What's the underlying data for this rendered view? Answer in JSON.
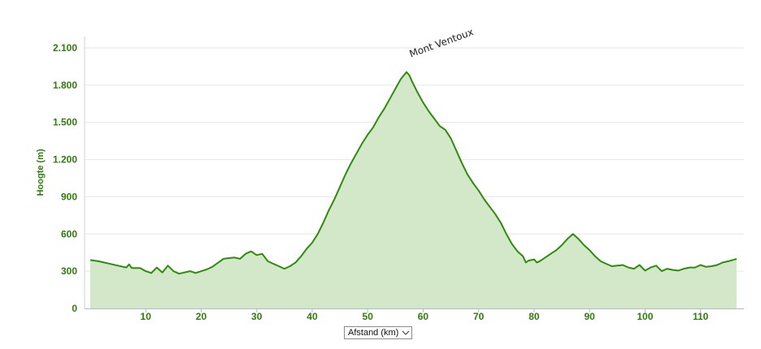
{
  "chart_data": {
    "type": "area",
    "ylabel": "Hoogte (m)",
    "xlabel": "",
    "xlim": [
      0,
      116.5
    ],
    "ylim": [
      0,
      2100
    ],
    "y_ticks": [
      0,
      300,
      600,
      900,
      1200,
      1500,
      1800,
      2100
    ],
    "y_tick_labels": [
      "0",
      "300",
      "600",
      "900",
      "1.200",
      "1.500",
      "1.800",
      "2.100"
    ],
    "x_ticks": [
      10,
      20,
      30,
      40,
      50,
      60,
      70,
      80,
      90,
      100,
      110
    ],
    "x_tick_labels": [
      "10",
      "20",
      "30",
      "40",
      "50",
      "60",
      "70",
      "80",
      "90",
      "100",
      "110"
    ],
    "grid": "horizontal",
    "colors": {
      "line": "#2e8b0e",
      "fill": "#d3e8c8",
      "axis_text": "#2e7d0b",
      "grid": "#e6e6e6"
    },
    "annotations": [
      {
        "text": "Mont Ventoux",
        "x": 57.5,
        "y": 1905
      }
    ],
    "series": [
      {
        "x": [
          0,
          1.5,
          3,
          5,
          6.5,
          7,
          7.5,
          9,
          10,
          11,
          12,
          13,
          14,
          15,
          16,
          17,
          18,
          19,
          20,
          21,
          22,
          24,
          26,
          27,
          28,
          29,
          30,
          31,
          32,
          33,
          34,
          35,
          36,
          37,
          38,
          39,
          40,
          41,
          42,
          43,
          44,
          45,
          46,
          47,
          48,
          49,
          50,
          51,
          52,
          53,
          54,
          55,
          56,
          57,
          57.5,
          58,
          59,
          60,
          61,
          62,
          63,
          64,
          65,
          66,
          67,
          68,
          69,
          70,
          71,
          72,
          73,
          74,
          75,
          76,
          77,
          78,
          78.5,
          79,
          80,
          80.5,
          81,
          82,
          83,
          84,
          85,
          86,
          87,
          88,
          89,
          90,
          91,
          92,
          93,
          94,
          95,
          96,
          97,
          98,
          99,
          100,
          101,
          102,
          103,
          104,
          105,
          106,
          107,
          108,
          109,
          110,
          111,
          112,
          113,
          114,
          115,
          116.5
        ],
        "y": [
          390,
          380,
          365,
          345,
          330,
          355,
          325,
          325,
          300,
          285,
          330,
          290,
          345,
          300,
          280,
          290,
          300,
          285,
          300,
          315,
          335,
          400,
          410,
          400,
          440,
          460,
          430,
          440,
          380,
          360,
          340,
          320,
          340,
          370,
          420,
          480,
          530,
          600,
          690,
          790,
          880,
          980,
          1080,
          1170,
          1250,
          1330,
          1400,
          1460,
          1540,
          1610,
          1690,
          1770,
          1850,
          1905,
          1880,
          1830,
          1740,
          1660,
          1590,
          1530,
          1470,
          1440,
          1370,
          1270,
          1170,
          1080,
          1010,
          950,
          880,
          820,
          760,
          690,
          600,
          520,
          460,
          420,
          370,
          385,
          395,
          370,
          380,
          410,
          440,
          470,
          510,
          560,
          600,
          560,
          510,
          470,
          420,
          380,
          360,
          340,
          345,
          350,
          330,
          320,
          350,
          305,
          330,
          345,
          300,
          320,
          310,
          305,
          320,
          330,
          330,
          350,
          335,
          340,
          350,
          370,
          380,
          400
        ]
      }
    ]
  },
  "controls": {
    "x_axis_select": "Afstand (km)"
  }
}
